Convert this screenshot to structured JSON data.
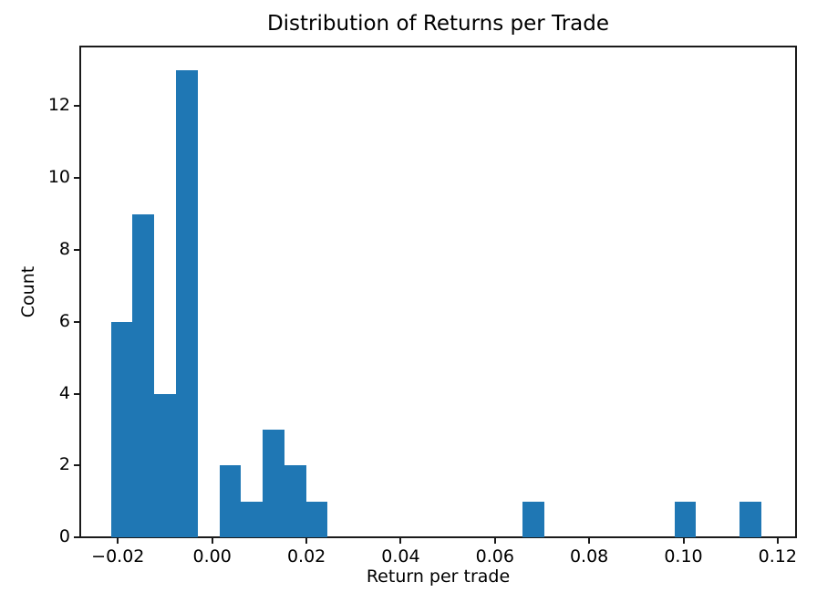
{
  "chart_data": {
    "type": "bar",
    "subtype": "histogram",
    "title": "Distribution of Returns per Trade",
    "xlabel": "Return per trade",
    "ylabel": "Count",
    "bar_color": "#1f77b4",
    "axis_color": "#1a1a1a",
    "background_color": "#ffffff",
    "grid": false,
    "legend": false,
    "bin_start": -0.0215,
    "bin_width": 0.0046,
    "counts": [
      6,
      9,
      4,
      13,
      0,
      2,
      1,
      3,
      2,
      1,
      0,
      0,
      0,
      0,
      0,
      0,
      0,
      0,
      0,
      1,
      0,
      0,
      0,
      0,
      0,
      0,
      1,
      0,
      0,
      1
    ],
    "total_observations": 44,
    "xlim": [
      -0.028,
      0.1239
    ],
    "ylim": [
      0,
      13.66
    ],
    "xticks": {
      "values": [
        -0.02,
        0.0,
        0.02,
        0.04,
        0.06,
        0.08,
        0.1,
        0.12
      ],
      "labels": [
        "−0.02",
        "0.00",
        "0.02",
        "0.04",
        "0.06",
        "0.08",
        "0.10",
        "0.12"
      ]
    },
    "yticks": {
      "values": [
        0,
        2,
        4,
        6,
        8,
        10,
        12
      ],
      "labels": [
        "0",
        "2",
        "4",
        "6",
        "8",
        "10",
        "12"
      ]
    }
  }
}
